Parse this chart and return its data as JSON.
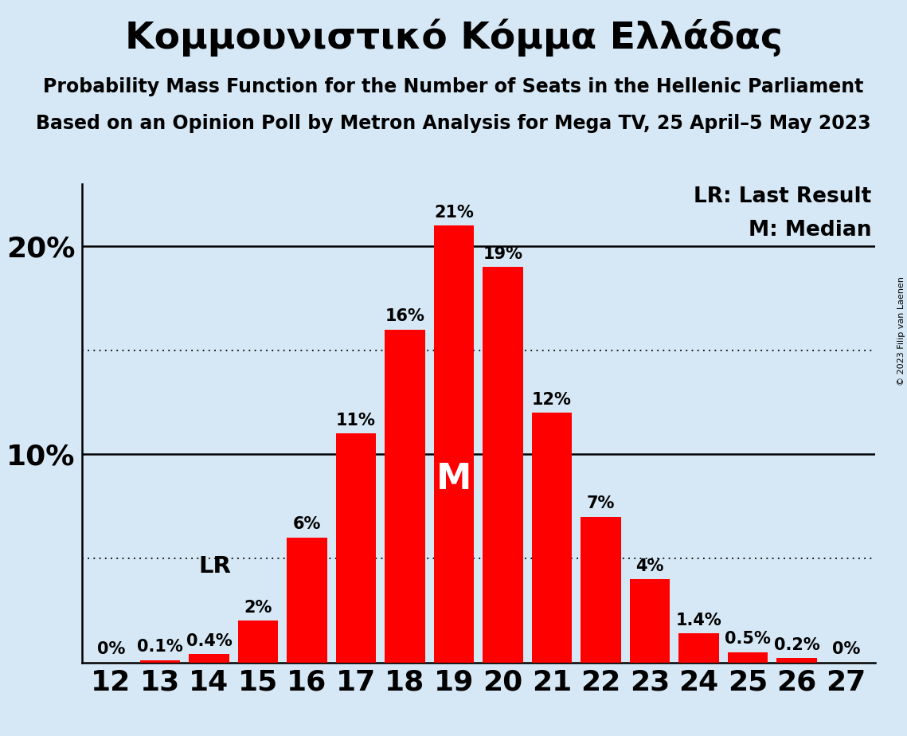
{
  "title": "Κομμουνιστικό Κόμμα Ελλάδας",
  "subtitle1": "Probability Mass Function for the Number of Seats in the Hellenic Parliament",
  "subtitle2": "Based on an Opinion Poll by Metron Analysis for Mega TV, 25 April–5 May 2023",
  "copyright": "© 2023 Filip van Laenen",
  "legend_lr": "LR: Last Result",
  "legend_m": "M: Median",
  "background_color": "#d6e8f5",
  "bar_color": "#ff0000",
  "seats": [
    12,
    13,
    14,
    15,
    16,
    17,
    18,
    19,
    20,
    21,
    22,
    23,
    24,
    25,
    26,
    27
  ],
  "probabilities": [
    0.0,
    0.1,
    0.4,
    2.0,
    6.0,
    11.0,
    16.0,
    21.0,
    19.0,
    12.0,
    7.0,
    4.0,
    1.4,
    0.5,
    0.2,
    0.0
  ],
  "labels": [
    "0%",
    "0.1%",
    "0.4%",
    "2%",
    "6%",
    "11%",
    "16%",
    "21%",
    "19%",
    "12%",
    "7%",
    "4%",
    "1.4%",
    "0.5%",
    "0.2%",
    "0%"
  ],
  "median_seat": 19,
  "lr_seat": 15,
  "ylim_max": 23,
  "hlines_solid": [
    10,
    20
  ],
  "hlines_dotted": [
    5,
    15
  ],
  "title_fontsize": 34,
  "subtitle_fontsize": 17,
  "bar_label_fontsize": 15,
  "ytick_fontsize": 26,
  "xtick_fontsize": 26,
  "legend_fontsize": 19,
  "median_label_fontsize": 32,
  "lr_label_fontsize": 21,
  "copyright_fontsize": 8
}
